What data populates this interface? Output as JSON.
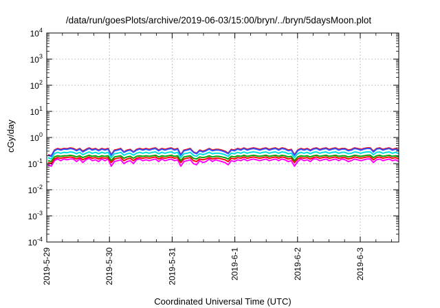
{
  "chart_data": {
    "type": "line",
    "title": "/data/run/goesPlots/archive/2019-06-03/15:00/bryn/../bryn/5daysMoon.plot",
    "xlabel": "Coordinated Universal Time (UTC)",
    "ylabel": "cGy/day",
    "yscale": "log",
    "ylim": [
      0.0001,
      10000
    ],
    "y_ticks": [
      {
        "value": 0.0001,
        "base": "10",
        "exp": "-4"
      },
      {
        "value": 0.001,
        "base": "10",
        "exp": "-3"
      },
      {
        "value": 0.01,
        "base": "10",
        "exp": "-2"
      },
      {
        "value": 0.1,
        "base": "10",
        "exp": "-1"
      },
      {
        "value": 1,
        "base": "10",
        "exp": "0"
      },
      {
        "value": 10,
        "base": "10",
        "exp": "1"
      },
      {
        "value": 100,
        "base": "10",
        "exp": "2"
      },
      {
        "value": 1000,
        "base": "10",
        "exp": "3"
      },
      {
        "value": 10000,
        "base": "10",
        "exp": "4"
      }
    ],
    "xlim": [
      "2019-05-29 00:00",
      "2019-06-03 15:00"
    ],
    "x_ticks": [
      "2019-5-29",
      "2019-5-30",
      "2019-5-31",
      "2019-6-1",
      "2019-6-2",
      "2019-6-3"
    ],
    "grid": "dotted",
    "series": [
      {
        "color": "#ff00ff",
        "values": [
          0.09,
          0.08,
          0.13,
          0.15,
          0.13,
          0.15,
          0.14,
          0.15,
          0.15,
          0.12,
          0.15,
          0.11,
          0.14,
          0.16,
          0.13,
          0.14,
          0.12,
          0.15,
          0.13,
          0.15,
          0.08,
          0.12,
          0.13,
          0.14,
          0.1,
          0.12,
          0.13,
          0.1,
          0.14,
          0.15,
          0.13,
          0.14,
          0.13,
          0.14,
          0.15,
          0.12,
          0.15,
          0.13,
          0.14,
          0.15,
          0.13,
          0.14,
          0.08,
          0.12,
          0.13,
          0.14,
          0.1,
          0.09,
          0.13,
          0.11,
          0.12,
          0.15,
          0.12,
          0.14,
          0.13,
          0.12,
          0.11,
          0.09,
          0.13,
          0.12,
          0.14,
          0.13,
          0.15,
          0.13,
          0.14,
          0.15,
          0.14,
          0.13,
          0.14,
          0.15,
          0.13,
          0.14,
          0.15,
          0.13,
          0.15,
          0.14,
          0.12,
          0.13,
          0.08,
          0.12,
          0.15,
          0.13,
          0.14,
          0.12,
          0.15,
          0.15,
          0.13,
          0.14,
          0.15,
          0.13,
          0.14,
          0.15,
          0.13,
          0.15,
          0.14,
          0.12,
          0.13,
          0.15,
          0.14,
          0.13,
          0.14,
          0.15,
          0.15,
          0.11,
          0.14,
          0.15,
          0.13,
          0.14,
          0.15,
          0.13,
          0.14,
          0.12
        ]
      },
      {
        "color": "#ff0000",
        "values": [
          0.11,
          0.1,
          0.15,
          0.17,
          0.16,
          0.17,
          0.17,
          0.18,
          0.17,
          0.15,
          0.17,
          0.14,
          0.16,
          0.18,
          0.16,
          0.17,
          0.15,
          0.17,
          0.16,
          0.17,
          0.11,
          0.15,
          0.16,
          0.17,
          0.13,
          0.15,
          0.16,
          0.13,
          0.16,
          0.17,
          0.16,
          0.17,
          0.16,
          0.17,
          0.18,
          0.15,
          0.17,
          0.16,
          0.17,
          0.18,
          0.16,
          0.17,
          0.11,
          0.15,
          0.16,
          0.17,
          0.13,
          0.12,
          0.15,
          0.14,
          0.15,
          0.17,
          0.15,
          0.16,
          0.16,
          0.15,
          0.14,
          0.12,
          0.16,
          0.15,
          0.17,
          0.16,
          0.18,
          0.16,
          0.17,
          0.18,
          0.17,
          0.16,
          0.17,
          0.18,
          0.16,
          0.17,
          0.18,
          0.16,
          0.18,
          0.17,
          0.15,
          0.16,
          0.11,
          0.15,
          0.17,
          0.16,
          0.17,
          0.15,
          0.17,
          0.18,
          0.16,
          0.17,
          0.18,
          0.16,
          0.17,
          0.18,
          0.16,
          0.17,
          0.17,
          0.15,
          0.16,
          0.18,
          0.17,
          0.16,
          0.17,
          0.18,
          0.18,
          0.14,
          0.17,
          0.18,
          0.16,
          0.17,
          0.18,
          0.16,
          0.17,
          0.15
        ]
      },
      {
        "color": "#00a000",
        "values": [
          0.13,
          0.12,
          0.18,
          0.2,
          0.19,
          0.2,
          0.2,
          0.21,
          0.2,
          0.18,
          0.2,
          0.17,
          0.19,
          0.21,
          0.19,
          0.2,
          0.18,
          0.2,
          0.19,
          0.2,
          0.13,
          0.18,
          0.19,
          0.2,
          0.16,
          0.18,
          0.19,
          0.16,
          0.19,
          0.2,
          0.19,
          0.2,
          0.19,
          0.2,
          0.21,
          0.18,
          0.2,
          0.19,
          0.2,
          0.21,
          0.19,
          0.2,
          0.13,
          0.18,
          0.19,
          0.2,
          0.16,
          0.15,
          0.18,
          0.17,
          0.18,
          0.2,
          0.18,
          0.19,
          0.19,
          0.18,
          0.17,
          0.15,
          0.19,
          0.18,
          0.2,
          0.19,
          0.21,
          0.19,
          0.2,
          0.21,
          0.2,
          0.19,
          0.2,
          0.21,
          0.19,
          0.2,
          0.21,
          0.19,
          0.21,
          0.2,
          0.18,
          0.19,
          0.13,
          0.18,
          0.2,
          0.19,
          0.2,
          0.18,
          0.2,
          0.21,
          0.19,
          0.2,
          0.21,
          0.19,
          0.2,
          0.21,
          0.19,
          0.2,
          0.2,
          0.18,
          0.19,
          0.21,
          0.2,
          0.19,
          0.2,
          0.21,
          0.21,
          0.17,
          0.2,
          0.21,
          0.19,
          0.2,
          0.21,
          0.19,
          0.2,
          0.18
        ]
      },
      {
        "color": "#00e0e0",
        "values": [
          0.17,
          0.15,
          0.24,
          0.27,
          0.25,
          0.27,
          0.26,
          0.28,
          0.27,
          0.24,
          0.27,
          0.22,
          0.25,
          0.28,
          0.25,
          0.27,
          0.24,
          0.27,
          0.25,
          0.27,
          0.17,
          0.24,
          0.25,
          0.27,
          0.21,
          0.24,
          0.25,
          0.21,
          0.25,
          0.27,
          0.25,
          0.27,
          0.25,
          0.27,
          0.28,
          0.24,
          0.27,
          0.25,
          0.27,
          0.28,
          0.25,
          0.27,
          0.17,
          0.24,
          0.25,
          0.27,
          0.21,
          0.19,
          0.24,
          0.22,
          0.24,
          0.27,
          0.24,
          0.25,
          0.25,
          0.24,
          0.22,
          0.19,
          0.25,
          0.24,
          0.27,
          0.25,
          0.28,
          0.25,
          0.27,
          0.28,
          0.27,
          0.25,
          0.27,
          0.28,
          0.25,
          0.27,
          0.28,
          0.25,
          0.28,
          0.27,
          0.24,
          0.25,
          0.17,
          0.24,
          0.27,
          0.25,
          0.27,
          0.24,
          0.27,
          0.28,
          0.25,
          0.27,
          0.28,
          0.25,
          0.27,
          0.28,
          0.25,
          0.27,
          0.27,
          0.24,
          0.25,
          0.28,
          0.27,
          0.25,
          0.27,
          0.28,
          0.28,
          0.22,
          0.27,
          0.28,
          0.25,
          0.27,
          0.28,
          0.25,
          0.27,
          0.24
        ]
      },
      {
        "color": "#ff0000",
        "values": [
          0.22,
          0.2,
          0.33,
          0.38,
          0.35,
          0.38,
          0.37,
          0.4,
          0.38,
          0.33,
          0.38,
          0.3,
          0.35,
          0.4,
          0.35,
          0.38,
          0.33,
          0.38,
          0.35,
          0.38,
          0.22,
          0.33,
          0.35,
          0.38,
          0.28,
          0.33,
          0.35,
          0.28,
          0.35,
          0.38,
          0.35,
          0.38,
          0.35,
          0.38,
          0.4,
          0.33,
          0.38,
          0.35,
          0.38,
          0.4,
          0.35,
          0.38,
          0.22,
          0.33,
          0.35,
          0.38,
          0.28,
          0.25,
          0.33,
          0.3,
          0.33,
          0.38,
          0.33,
          0.35,
          0.35,
          0.33,
          0.3,
          0.25,
          0.35,
          0.33,
          0.38,
          0.35,
          0.4,
          0.35,
          0.38,
          0.4,
          0.38,
          0.35,
          0.38,
          0.4,
          0.35,
          0.38,
          0.4,
          0.35,
          0.4,
          0.38,
          0.33,
          0.35,
          0.22,
          0.33,
          0.38,
          0.35,
          0.38,
          0.33,
          0.38,
          0.4,
          0.35,
          0.38,
          0.4,
          0.35,
          0.38,
          0.4,
          0.35,
          0.38,
          0.38,
          0.33,
          0.35,
          0.4,
          0.38,
          0.35,
          0.38,
          0.4,
          0.4,
          0.3,
          0.38,
          0.4,
          0.35,
          0.38,
          0.4,
          0.35,
          0.38,
          0.33
        ]
      },
      {
        "color": "#3050ff",
        "values": [
          0.21,
          0.19,
          0.31,
          0.36,
          0.33,
          0.36,
          0.35,
          0.38,
          0.36,
          0.31,
          0.36,
          0.28,
          0.33,
          0.38,
          0.33,
          0.36,
          0.31,
          0.36,
          0.33,
          0.36,
          0.21,
          0.31,
          0.33,
          0.36,
          0.27,
          0.31,
          0.33,
          0.27,
          0.33,
          0.36,
          0.33,
          0.36,
          0.33,
          0.36,
          0.38,
          0.31,
          0.36,
          0.33,
          0.36,
          0.38,
          0.33,
          0.36,
          0.21,
          0.31,
          0.33,
          0.36,
          0.27,
          0.24,
          0.31,
          0.28,
          0.31,
          0.36,
          0.31,
          0.33,
          0.33,
          0.31,
          0.28,
          0.24,
          0.33,
          0.31,
          0.36,
          0.33,
          0.38,
          0.33,
          0.36,
          0.38,
          0.36,
          0.33,
          0.36,
          0.38,
          0.33,
          0.36,
          0.38,
          0.33,
          0.38,
          0.36,
          0.31,
          0.33,
          0.21,
          0.31,
          0.36,
          0.33,
          0.36,
          0.31,
          0.36,
          0.38,
          0.33,
          0.36,
          0.38,
          0.33,
          0.36,
          0.38,
          0.33,
          0.36,
          0.36,
          0.31,
          0.33,
          0.38,
          0.36,
          0.33,
          0.36,
          0.38,
          0.38,
          0.28,
          0.36,
          0.38,
          0.33,
          0.36,
          0.38,
          0.33,
          0.36,
          0.31
        ]
      }
    ]
  }
}
